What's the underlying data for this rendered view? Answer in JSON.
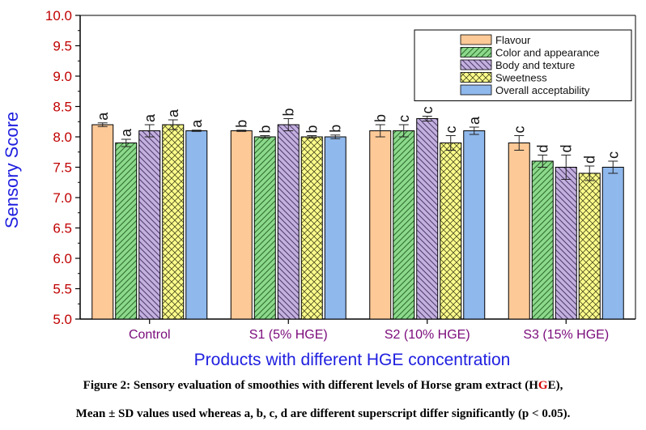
{
  "chart_data": {
    "type": "bar",
    "categories": [
      "Control",
      "S1 (5% HGE)",
      "S2 (10% HGE)",
      "S3 (15% HGE)"
    ],
    "ylabel": "Sensory Score",
    "xlabel": "Products with different HGE concentration",
    "ylim": [
      5.0,
      10.0
    ],
    "yticks": [
      "5.0",
      "5.5",
      "6.0",
      "6.5",
      "7.0",
      "7.5",
      "8.0",
      "8.5",
      "9.0",
      "9.5",
      "10.0"
    ],
    "legend_position": "top-right",
    "series": [
      {
        "name": "Flavour",
        "color": "#fdc997",
        "pattern": "none",
        "values": [
          8.2,
          8.1,
          8.1,
          7.9
        ],
        "errors": [
          0.03,
          0.01,
          0.1,
          0.12
        ],
        "letters": [
          "a",
          "b",
          "b",
          "c"
        ]
      },
      {
        "name": "Color and appearance",
        "color": "#8cd98c",
        "pattern": "diag-left",
        "values": [
          7.9,
          8.0,
          8.1,
          7.6
        ],
        "errors": [
          0.06,
          0.02,
          0.1,
          0.1
        ],
        "letters": [
          "a",
          "b",
          "c",
          "d"
        ]
      },
      {
        "name": "Body and texture",
        "color": "#c4b0df",
        "pattern": "diag-right",
        "values": [
          8.1,
          8.2,
          8.3,
          7.5
        ],
        "errors": [
          0.1,
          0.1,
          0.04,
          0.2
        ],
        "letters": [
          "a",
          "b",
          "c",
          "d"
        ]
      },
      {
        "name": "Sweetness",
        "color": "#fdfd8c",
        "pattern": "cross",
        "values": [
          8.2,
          8.0,
          7.9,
          7.4
        ],
        "errors": [
          0.08,
          0.02,
          0.12,
          0.12
        ],
        "letters": [
          "a",
          "b",
          "c",
          "d"
        ]
      },
      {
        "name": "Overall acceptability",
        "color": "#8fb8ec",
        "pattern": "none",
        "values": [
          8.1,
          8.0,
          8.1,
          7.5
        ],
        "errors": [
          0.01,
          0.03,
          0.06,
          0.1
        ],
        "letters": [
          "a",
          "b",
          "a",
          "c"
        ]
      }
    ]
  },
  "caption": {
    "line1_before": "Figure 2: Sensory evaluation of smoothies with different levels of Horse gram extract (H",
    "line1_highlight": "G",
    "line1_after": "E),",
    "line2": "Mean ± SD values used whereas a, b, c, d are different superscript differ significantly (p < 0.05)."
  },
  "colors": {
    "axis": "#000000",
    "tick_labels": "#c00000",
    "category_labels": "#7a0a7a",
    "axis_titles": "#2020e0"
  }
}
